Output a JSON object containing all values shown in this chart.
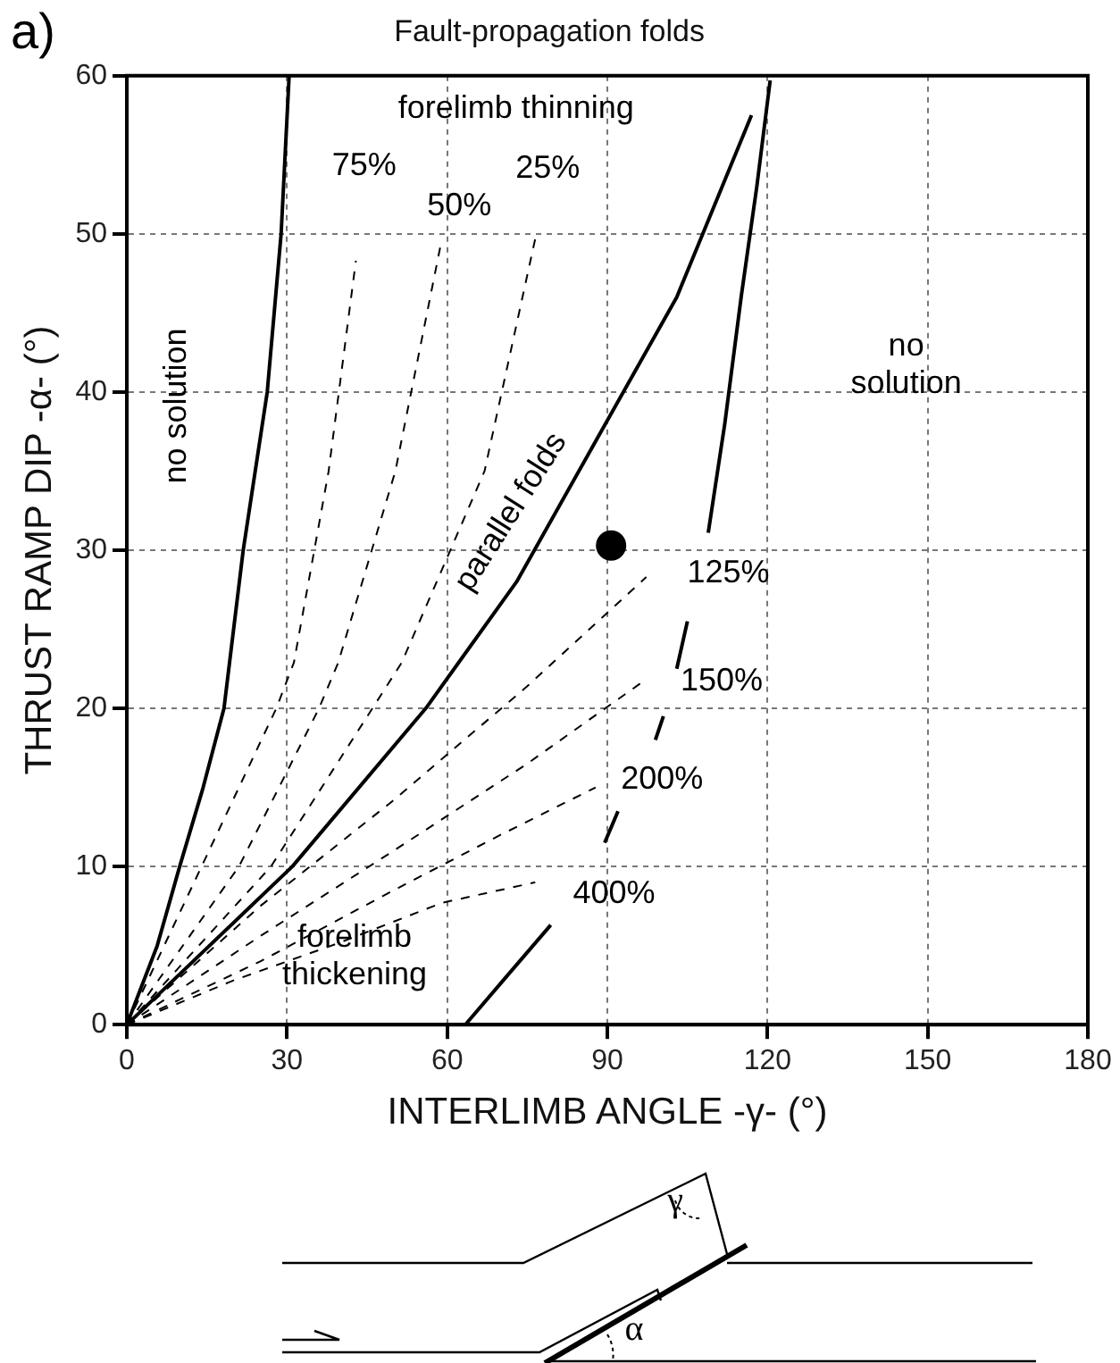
{
  "chart_data": {
    "type": "line",
    "title": "Fault-propagation folds",
    "xlabel": "INTERLIMB ANGLE -γ- (°)",
    "ylabel": "THRUST RAMP DIP -α- (°)",
    "xlim": [
      0,
      180
    ],
    "xticks": [
      0,
      30,
      60,
      90,
      120,
      150,
      180
    ],
    "ylim": [
      0,
      60
    ],
    "yticks": [
      0,
      10,
      20,
      30,
      40,
      50,
      60
    ],
    "grid": true,
    "legend": false,
    "marker": "none",
    "series": [
      {
        "type": "line",
        "color": "#000000",
        "line_style": "solid",
        "x": [
          0,
          5.7,
          9.9,
          14.3,
          18.2,
          21.8,
          26.3,
          28.9,
          30.4
        ],
        "values": [
          0,
          5,
          10,
          15,
          20,
          30,
          40,
          50,
          60
        ]
      },
      {
        "type": "line",
        "color": "#000000",
        "line_style": "solid",
        "x": [
          63.4,
          71,
          79.4,
          85,
          89.5,
          92,
          96,
          99,
          100.5,
          102,
          103,
          105,
          107,
          108.9,
          112,
          115.1,
          118,
          120.5
        ],
        "values": [
          0,
          3,
          6.3,
          null,
          11.5,
          13.5,
          null,
          18,
          19.5,
          null,
          22.5,
          25.5,
          null,
          31.1,
          38,
          46.1,
          53,
          59.7
        ]
      },
      {
        "type": "line",
        "color": "#000000",
        "line_style": "solid",
        "x": [
          0,
          31,
          56,
          73,
          88,
          103,
          117
        ],
        "values": [
          0,
          10,
          20,
          28,
          37,
          46,
          57.5
        ]
      },
      {
        "type": "line",
        "color": "#000000",
        "line_style": "dashed",
        "x": [
          0,
          14,
          28,
          31.3,
          37.8,
          42.9
        ],
        "values": [
          0,
          10,
          20,
          22.9,
          35,
          48.3
        ]
      },
      {
        "type": "line",
        "color": "#000000",
        "line_style": "dashed",
        "x": [
          0,
          21,
          36,
          39.6,
          50.3,
          58.9
        ],
        "values": [
          0,
          10,
          20,
          22.9,
          35,
          49.5
        ]
      },
      {
        "type": "line",
        "color": "#000000",
        "line_style": "dashed",
        "x": [
          0,
          27,
          46,
          51.5,
          67,
          76.5
        ],
        "values": [
          0,
          10,
          20,
          22.9,
          35,
          49.7
        ]
      },
      {
        "type": "line",
        "color": "#000000",
        "line_style": "dashed",
        "x": [
          0,
          25,
          50,
          75,
          97.3
        ],
        "values": [
          0,
          7.5,
          14.2,
          21.4,
          28.3
        ]
      },
      {
        "type": "line",
        "color": "#000000",
        "line_style": "dashed",
        "x": [
          0,
          25,
          50,
          75,
          96.7
        ],
        "values": [
          0,
          5.6,
          11,
          16.5,
          21.7
        ]
      },
      {
        "type": "line",
        "color": "#000000",
        "line_style": "dashed",
        "x": [
          0,
          25,
          50,
          70,
          87.8
        ],
        "values": [
          0,
          4,
          8.5,
          12,
          15
        ]
      },
      {
        "type": "line",
        "color": "#000000",
        "line_style": "dashed",
        "x": [
          0,
          20,
          40,
          59,
          76.5
        ],
        "values": [
          0,
          2.8,
          5.2,
          7.7,
          9
        ]
      },
      {
        "type": "scatter",
        "color": "#000000",
        "marker": "circle",
        "x": [
          90.7
        ],
        "values": [
          30.3
        ]
      }
    ],
    "annotations": [
      "a)",
      "γ",
      "α",
      "forelimb thinning",
      "75%",
      "50%",
      "25%",
      "no solution",
      "no solution",
      "parallel folds",
      "125%",
      "150%",
      "200%",
      "400%",
      "forelimb thickening"
    ]
  }
}
